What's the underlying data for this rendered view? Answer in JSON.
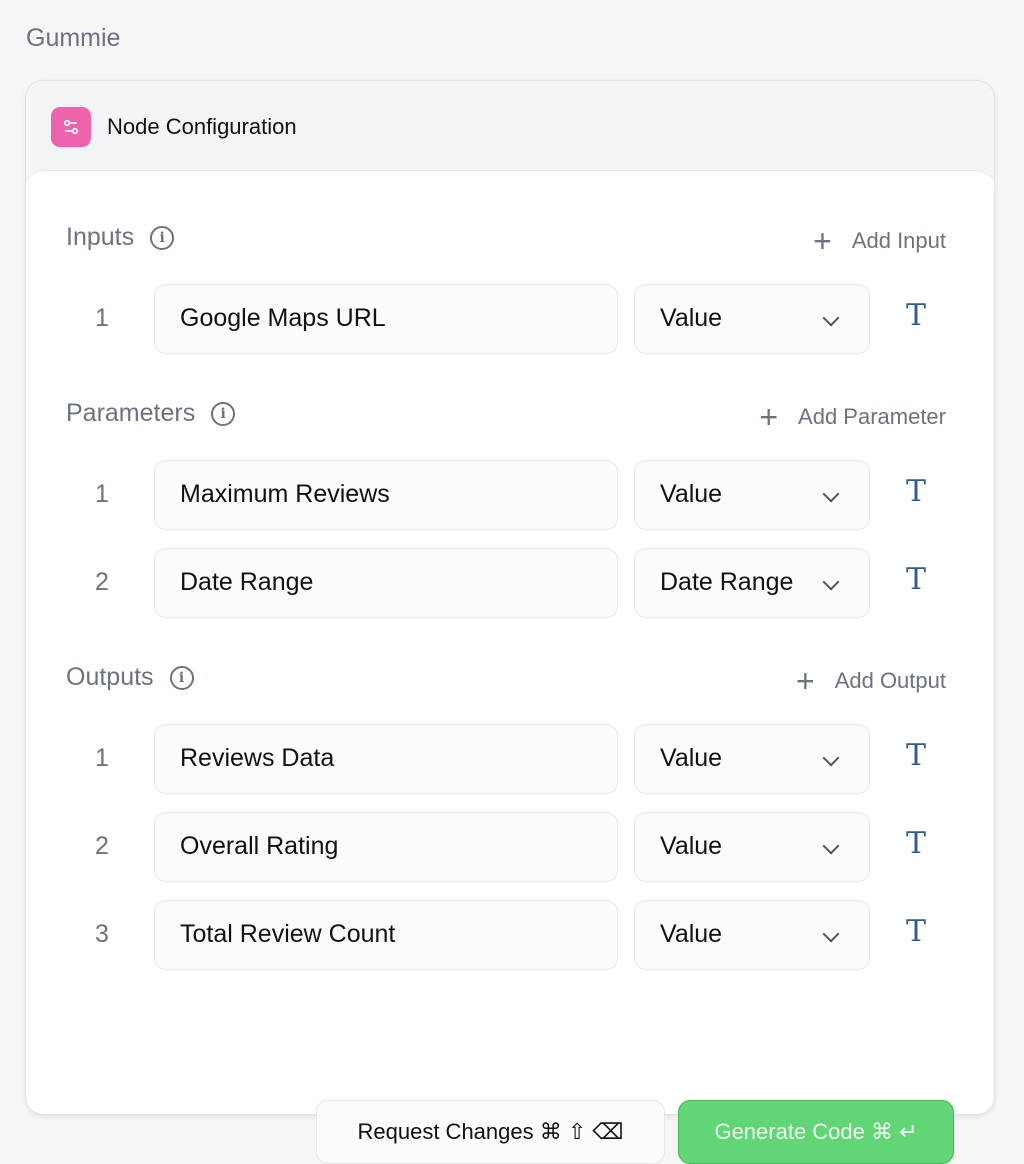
{
  "app_title": "Gummie",
  "header": {
    "title": "Node Configuration",
    "icon": "sliders-icon",
    "icon_color": "#ee64ac"
  },
  "sections": {
    "inputs": {
      "title": "Inputs",
      "add_label": "Add Input",
      "rows": [
        {
          "num": "1",
          "name": "Google Maps URL",
          "type": "Value"
        }
      ]
    },
    "parameters": {
      "title": "Parameters",
      "add_label": "Add Parameter",
      "rows": [
        {
          "num": "1",
          "name": "Maximum Reviews",
          "type": "Value"
        },
        {
          "num": "2",
          "name": "Date Range",
          "type": "Date Range"
        }
      ]
    },
    "outputs": {
      "title": "Outputs",
      "add_label": "Add Output",
      "rows": [
        {
          "num": "1",
          "name": "Reviews Data",
          "type": "Value"
        },
        {
          "num": "2",
          "name": "Overall Rating",
          "type": "Value"
        },
        {
          "num": "3",
          "name": "Total Review Count",
          "type": "Value"
        }
      ]
    }
  },
  "buttons": {
    "request_changes": "Request Changes ⌘ ⇧ ⌫",
    "generate_code": "Generate Code ⌘ ↵",
    "generate_color": "#62d676"
  }
}
